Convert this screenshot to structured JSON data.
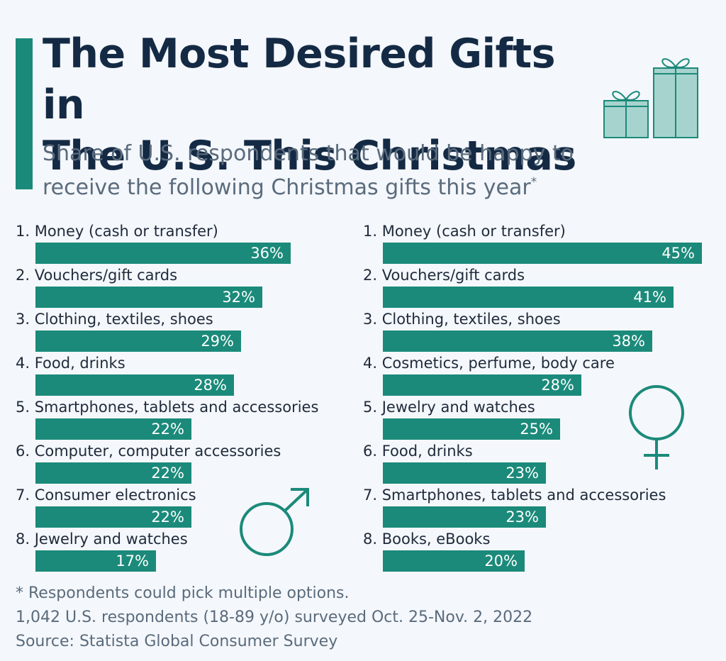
{
  "title_line1": "The Most Desired Gifts in",
  "title_line2": "The U.S. This Christmas",
  "subtitle": "Share of U.S. respondents that would be happy to receive the following Christmas gifts this year",
  "subtitle_mark": "*",
  "colors": {
    "accent": "#1b8a7a",
    "title": "#142a44",
    "subtitle": "#5a6b7c",
    "background": "#f4f7fb"
  },
  "icons": {
    "gifts": "gift-boxes-icon",
    "male": "male-symbol-icon",
    "female": "female-symbol-icon"
  },
  "chart_data": [
    {
      "type": "bar",
      "orientation": "horizontal",
      "group": "male",
      "unit": "%",
      "xlim": [
        0,
        50
      ],
      "categories": [
        "1. Money (cash or transfer)",
        "2. Vouchers/gift cards",
        "3. Clothing, textiles, shoes",
        "4. Food, drinks",
        "5. Smartphones, tablets and accessories",
        "6. Computer, computer accessories",
        "7. Consumer electronics",
        "8. Jewelry and watches"
      ],
      "values": [
        36,
        32,
        29,
        28,
        22,
        22,
        22,
        17
      ],
      "value_labels": [
        "36%",
        "32%",
        "29%",
        "28%",
        "22%",
        "22%",
        "22%",
        "17%"
      ]
    },
    {
      "type": "bar",
      "orientation": "horizontal",
      "group": "female",
      "unit": "%",
      "xlim": [
        0,
        50
      ],
      "categories": [
        "1. Money (cash or transfer)",
        "2. Vouchers/gift cards",
        "3. Clothing, textiles, shoes",
        "4. Cosmetics, perfume, body care",
        "5. Jewelry and watches",
        "6. Food, drinks",
        "7. Smartphones, tablets and accessories",
        "8. Books, eBooks"
      ],
      "values": [
        45,
        41,
        38,
        28,
        25,
        23,
        23,
        20
      ],
      "value_labels": [
        "45%",
        "41%",
        "38%",
        "28%",
        "25%",
        "23%",
        "23%",
        "20%"
      ]
    }
  ],
  "footnote": {
    "line1": "* Respondents could pick multiple options.",
    "line2": "1,042 U.S. respondents (18-89 y/o) surveyed Oct. 25-Nov. 2, 2022",
    "line3": "Source: Statista Global Consumer Survey"
  }
}
